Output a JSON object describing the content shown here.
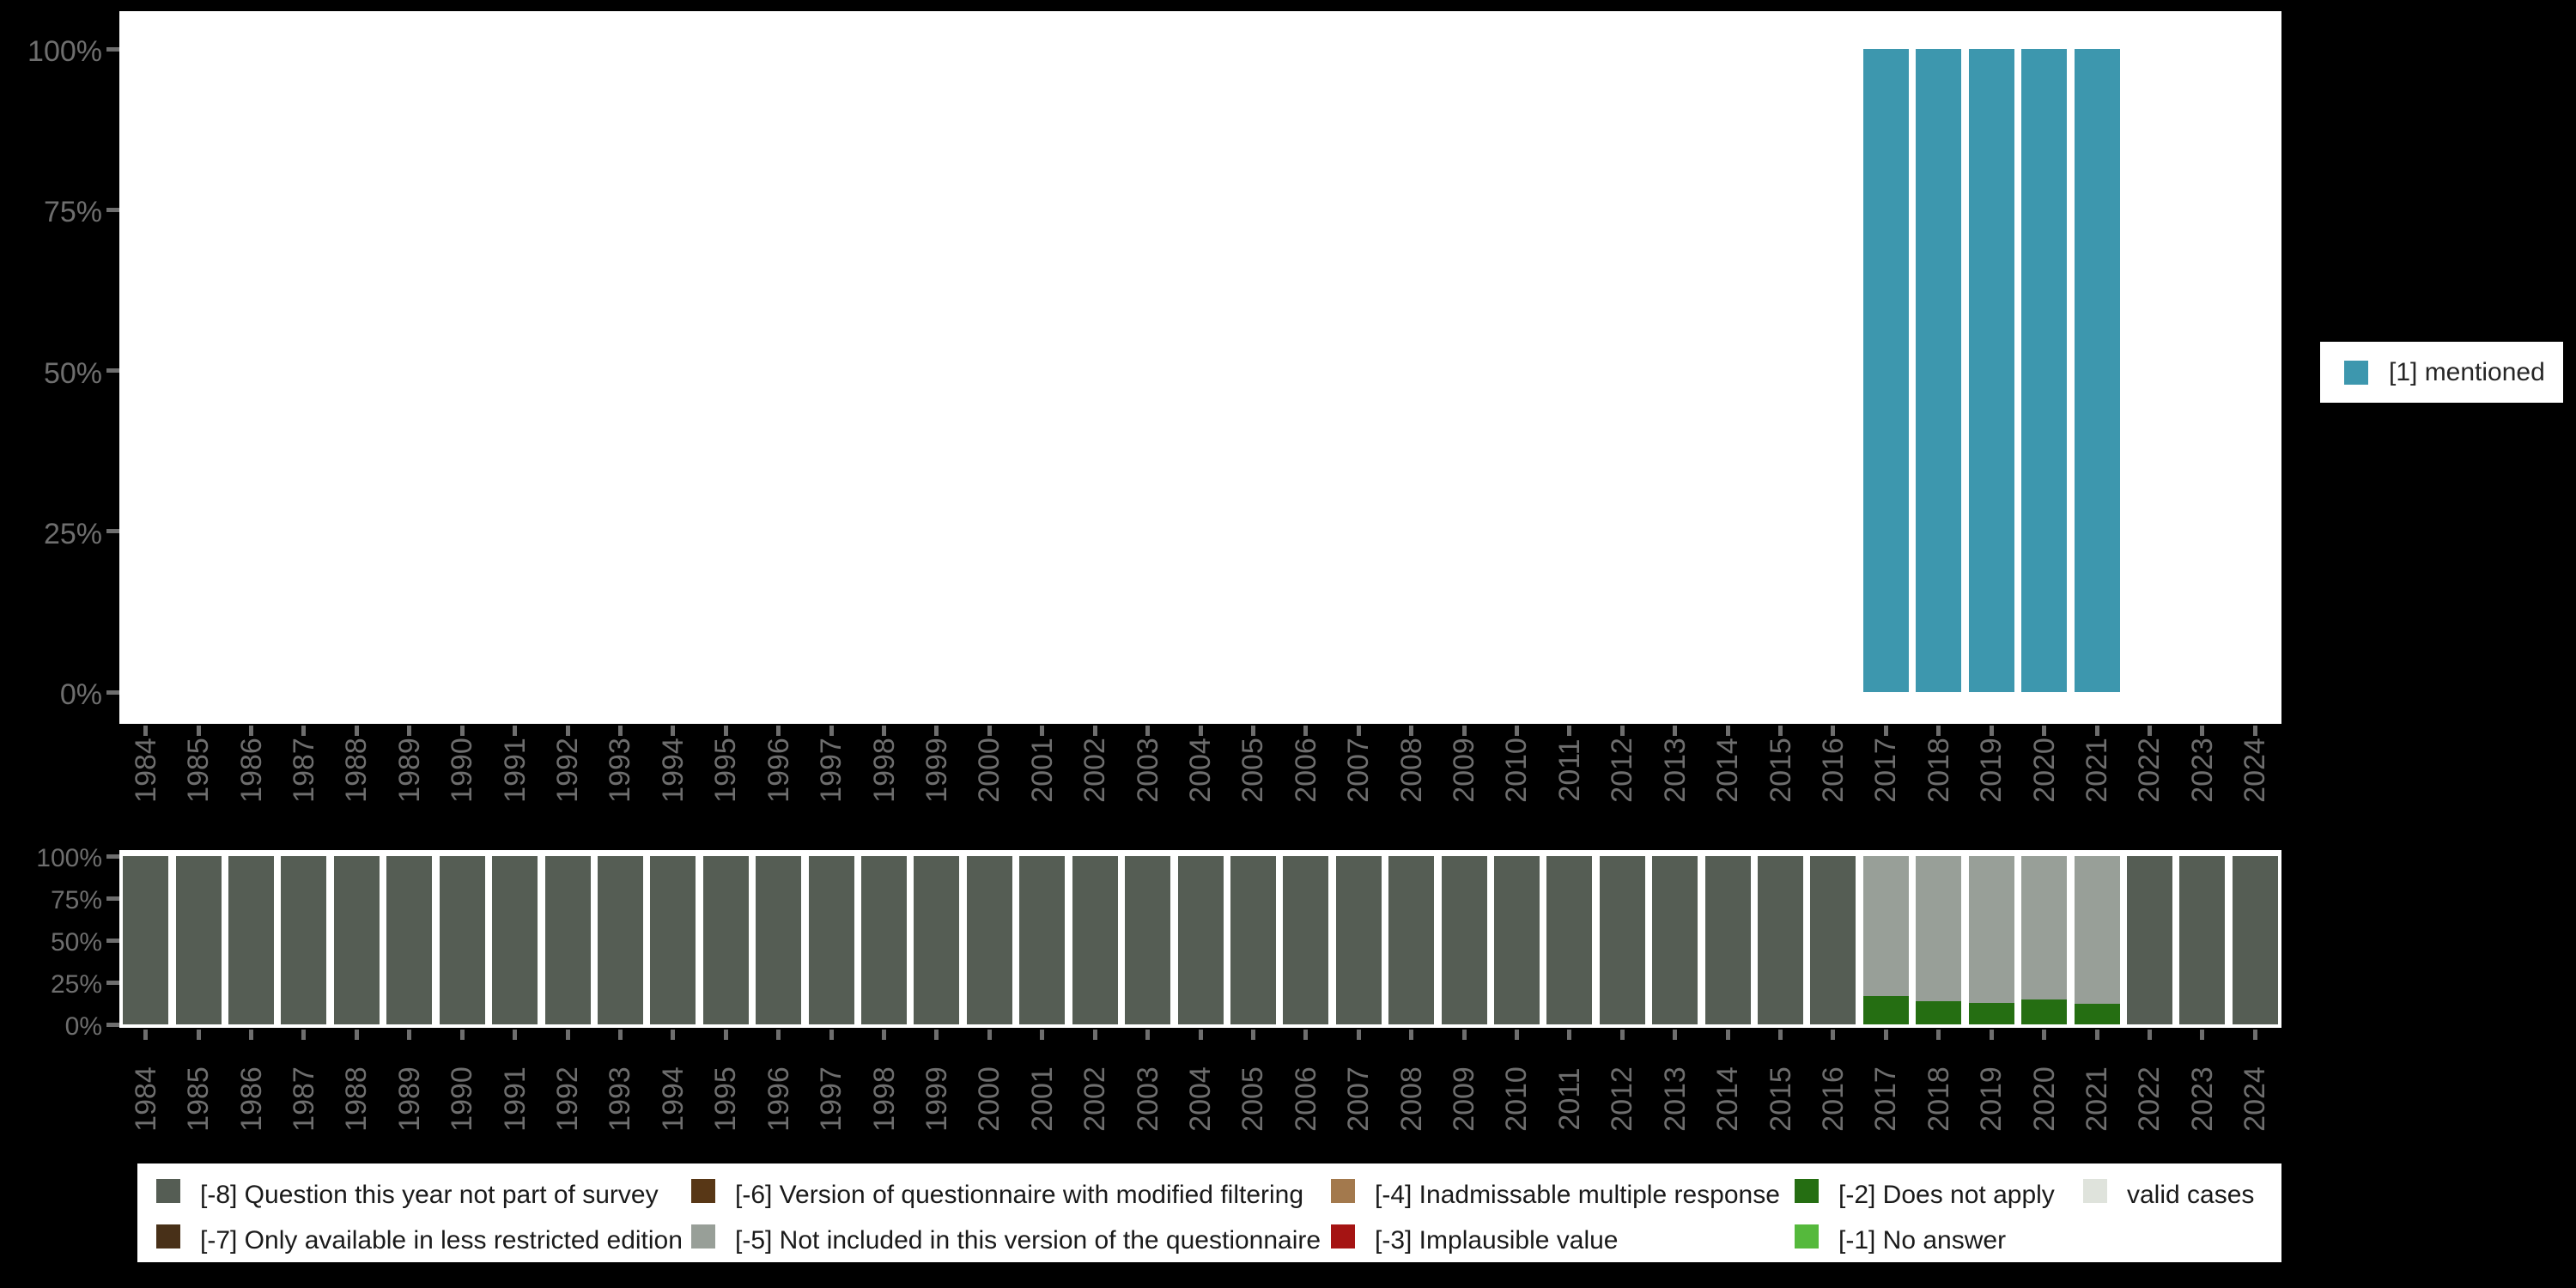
{
  "colors": {
    "background": "#000000",
    "plot_background": "#ffffff",
    "axis_text": "#6e6e6e",
    "tick": "#6e6e6e",
    "legend_text": "#1a1a1a",
    "mentioned": "#3d97ae",
    "m8": "#555d54",
    "m7": "#483018",
    "m6": "#583716",
    "m5": "#989f98",
    "m4": "#a3794d",
    "m3": "#a51413",
    "m2": "#256e12",
    "m1": "#55b93c",
    "valid": "#dfe3dc"
  },
  "legend_right": {
    "label": "[1] mentioned",
    "color": "#3d97ae"
  },
  "legend_bottom": {
    "columns": [
      [
        {
          "label": "[-8] Question this year not part of survey",
          "color": "#555d54"
        },
        {
          "label": "[-7] Only available in less restricted edition",
          "color": "#483018"
        }
      ],
      [
        {
          "label": "[-6] Version of questionnaire with modified filtering",
          "color": "#583716"
        },
        {
          "label": "[-5] Not included in this version of the questionnaire",
          "color": "#989f98"
        }
      ],
      [
        {
          "label": "[-4] Inadmissable multiple response",
          "color": "#a3794d"
        },
        {
          "label": "[-3] Implausible value",
          "color": "#a51413"
        }
      ],
      [
        {
          "label": "[-2] Does not apply",
          "color": "#256e12"
        },
        {
          "label": "[-1] No answer",
          "color": "#55b93c"
        }
      ],
      [
        {
          "label": "valid cases",
          "color": "#dfe3dc"
        }
      ]
    ]
  },
  "chart_data": [
    {
      "type": "bar",
      "stacked": true,
      "title": "",
      "xlabel": "",
      "ylabel": "",
      "ylim": [
        0,
        100
      ],
      "grid": false,
      "legend_position": "right",
      "yticks": [
        "0%",
        "25%",
        "50%",
        "75%",
        "100%"
      ],
      "categories": [
        "1984",
        "1985",
        "1986",
        "1987",
        "1988",
        "1989",
        "1990",
        "1991",
        "1992",
        "1993",
        "1994",
        "1995",
        "1996",
        "1997",
        "1998",
        "1999",
        "2000",
        "2001",
        "2002",
        "2003",
        "2004",
        "2005",
        "2006",
        "2007",
        "2008",
        "2009",
        "2010",
        "2011",
        "2012",
        "2013",
        "2014",
        "2015",
        "2016",
        "2017",
        "2018",
        "2019",
        "2020",
        "2021",
        "2022",
        "2023",
        "2024"
      ],
      "series": [
        {
          "name": "[1] mentioned",
          "color": "#3d97ae",
          "values": [
            null,
            null,
            null,
            null,
            null,
            null,
            null,
            null,
            null,
            null,
            null,
            null,
            null,
            null,
            null,
            null,
            null,
            null,
            null,
            null,
            null,
            null,
            null,
            null,
            null,
            null,
            null,
            null,
            null,
            null,
            null,
            null,
            null,
            100,
            100,
            100,
            100,
            100,
            null,
            null,
            null
          ]
        }
      ]
    },
    {
      "type": "bar",
      "stacked": true,
      "title": "",
      "xlabel": "",
      "ylabel": "",
      "ylim": [
        0,
        100
      ],
      "grid": false,
      "legend_position": "bottom",
      "yticks": [
        "0%",
        "25%",
        "50%",
        "75%",
        "100%"
      ],
      "categories": [
        "1984",
        "1985",
        "1986",
        "1987",
        "1988",
        "1989",
        "1990",
        "1991",
        "1992",
        "1993",
        "1994",
        "1995",
        "1996",
        "1997",
        "1998",
        "1999",
        "2000",
        "2001",
        "2002",
        "2003",
        "2004",
        "2005",
        "2006",
        "2007",
        "2008",
        "2009",
        "2010",
        "2011",
        "2012",
        "2013",
        "2014",
        "2015",
        "2016",
        "2017",
        "2018",
        "2019",
        "2020",
        "2021",
        "2022",
        "2023",
        "2024"
      ],
      "series": [
        {
          "name": "[-2] Does not apply",
          "color": "#256e12",
          "values": [
            0,
            0,
            0,
            0,
            0,
            0,
            0,
            0,
            0,
            0,
            0,
            0,
            0,
            0,
            0,
            0,
            0,
            0,
            0,
            0,
            0,
            0,
            0,
            0,
            0,
            0,
            0,
            0,
            0,
            0,
            0,
            0,
            0,
            17,
            14,
            13,
            15,
            12,
            0,
            0,
            0
          ]
        },
        {
          "name": "[-5] Not included in this version of the questionnaire",
          "color": "#989f98",
          "values": [
            0,
            0,
            0,
            0,
            0,
            0,
            0,
            0,
            0,
            0,
            0,
            0,
            0,
            0,
            0,
            0,
            0,
            0,
            0,
            0,
            0,
            0,
            0,
            0,
            0,
            0,
            0,
            0,
            0,
            0,
            0,
            0,
            0,
            83,
            86,
            87,
            85,
            88,
            0,
            0,
            0
          ]
        },
        {
          "name": "[-8] Question this year not part of survey",
          "color": "#555d54",
          "values": [
            100,
            100,
            100,
            100,
            100,
            100,
            100,
            100,
            100,
            100,
            100,
            100,
            100,
            100,
            100,
            100,
            100,
            100,
            100,
            100,
            100,
            100,
            100,
            100,
            100,
            100,
            100,
            100,
            100,
            100,
            100,
            100,
            100,
            0,
            0,
            0,
            0,
            0,
            100,
            100,
            100
          ]
        }
      ]
    }
  ]
}
